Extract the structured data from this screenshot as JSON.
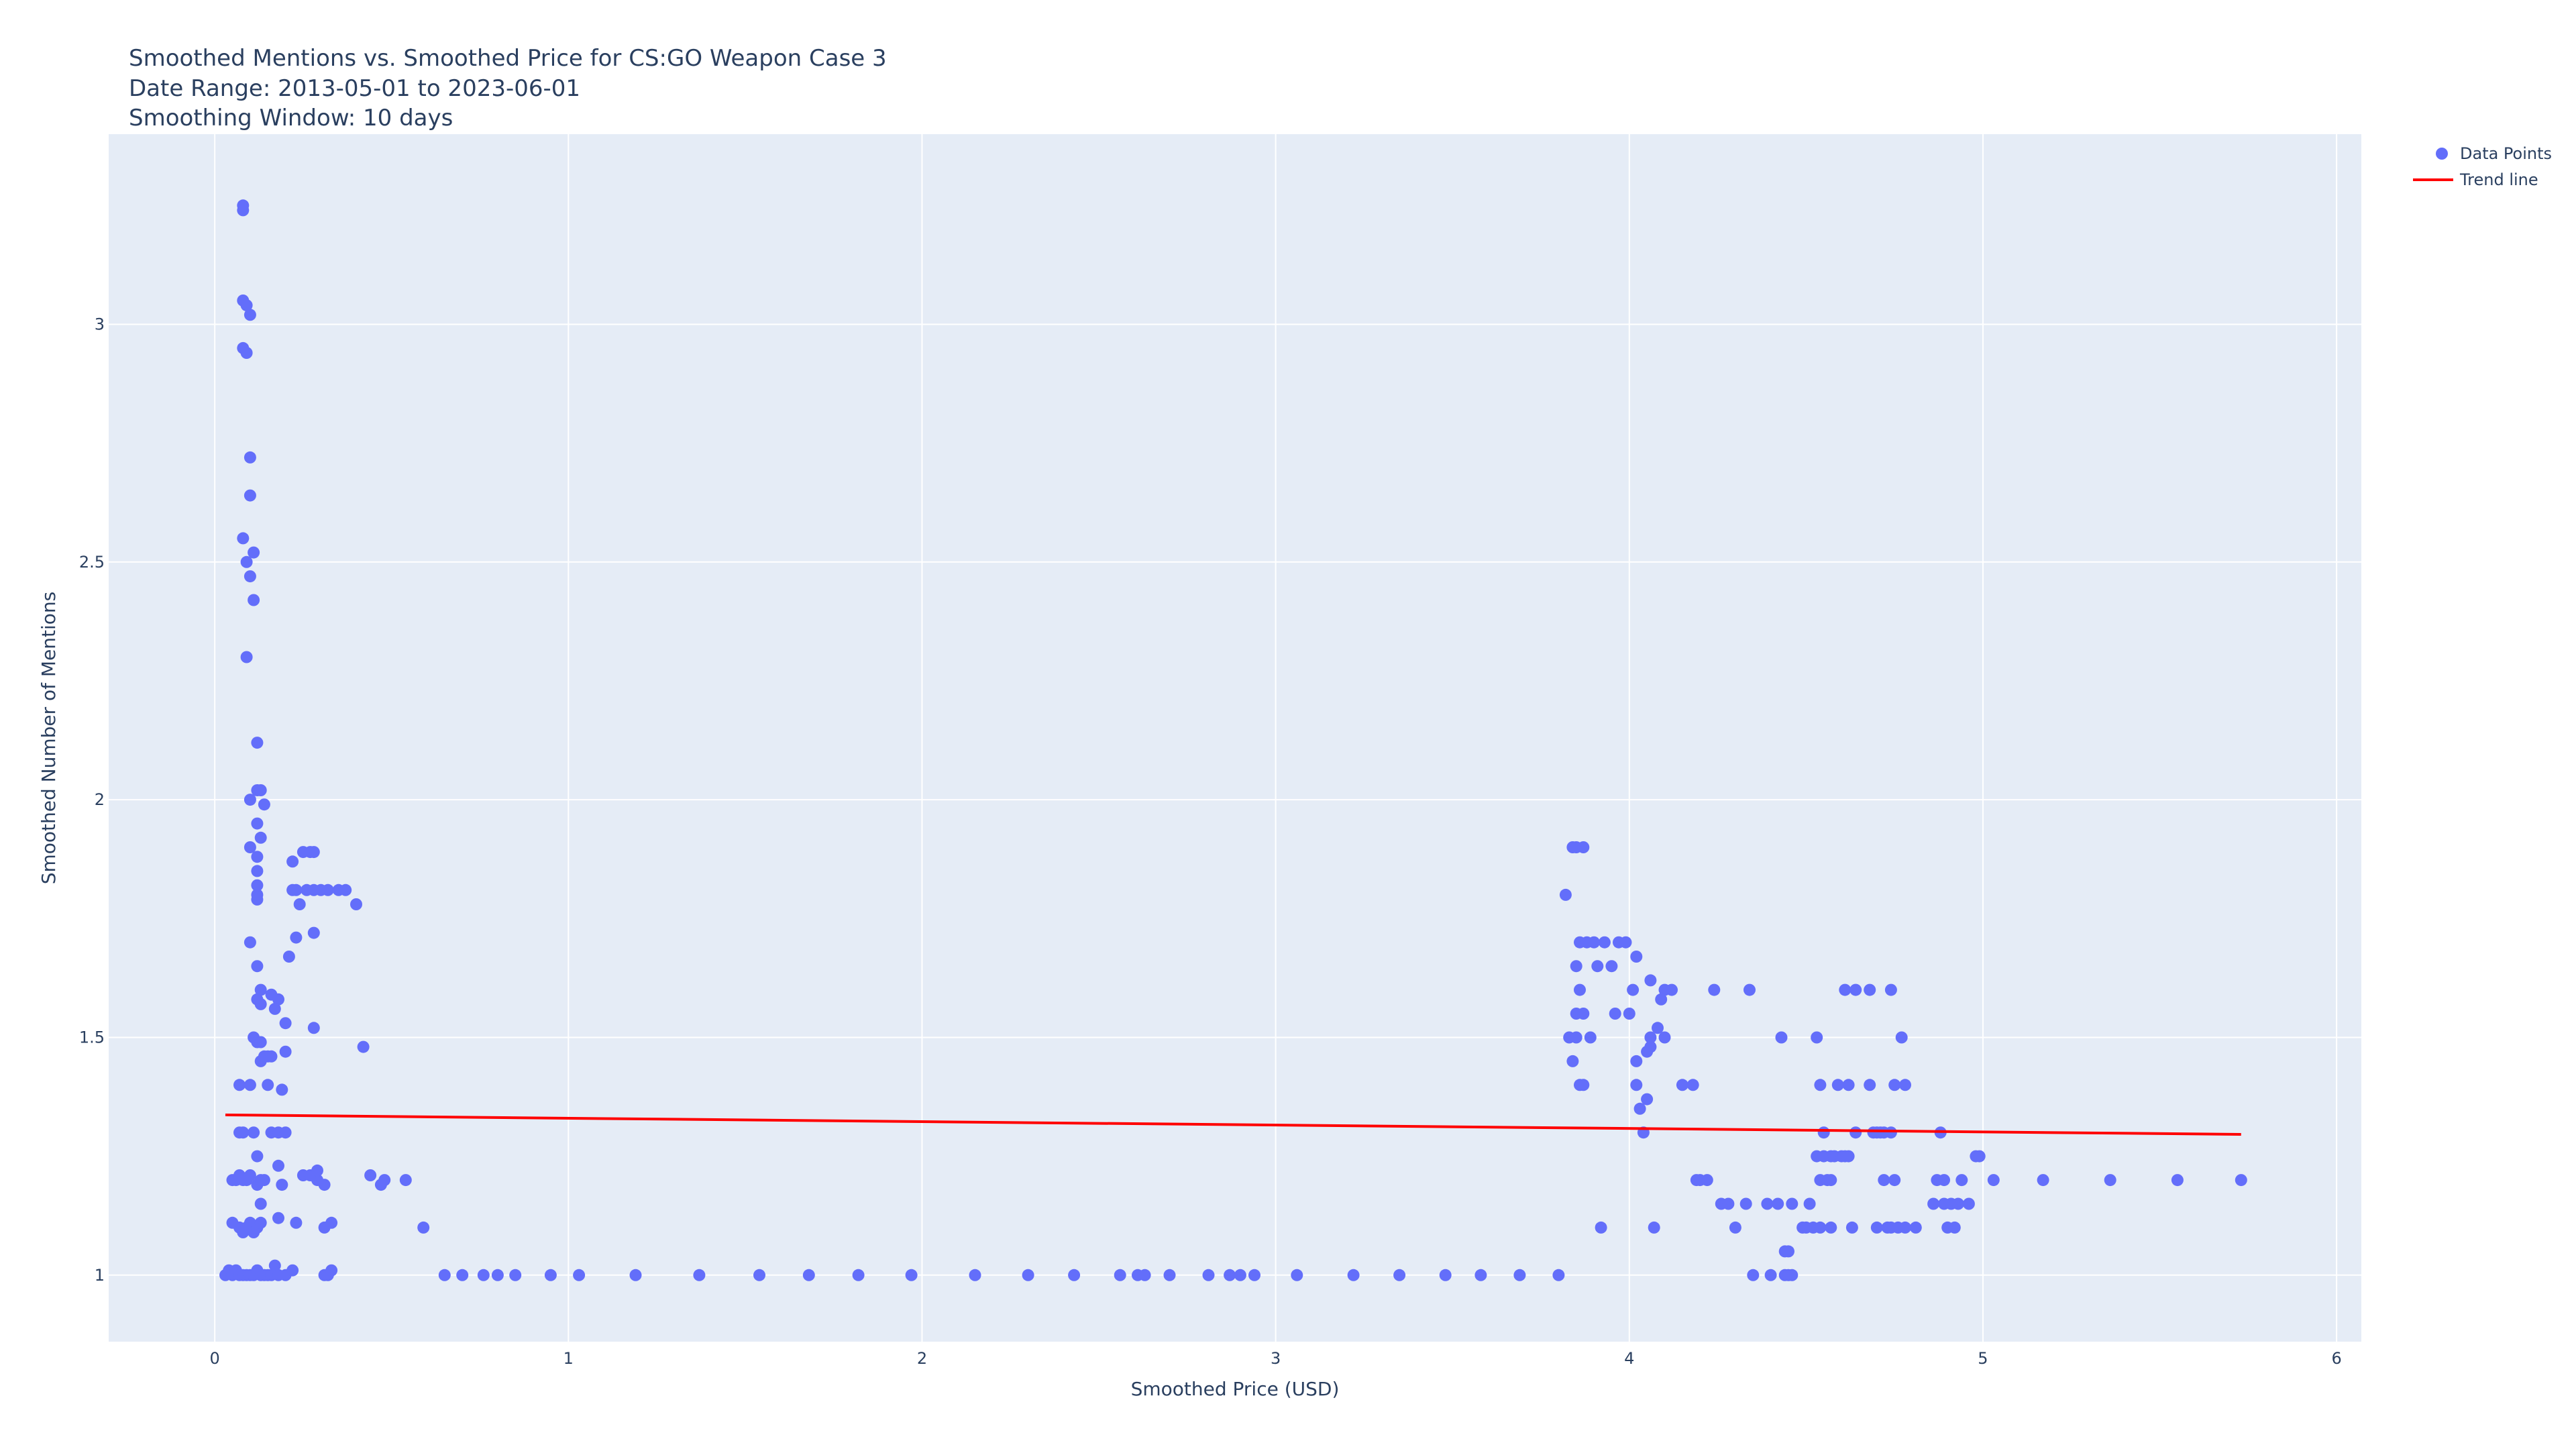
{
  "chart_data": {
    "type": "scatter",
    "title": [
      "Smoothed Mentions vs. Smoothed Price for CS:GO Weapon Case 3",
      "Date Range: 2013-05-01 to 2023-06-01",
      "Smoothing Window: 10 days"
    ],
    "xlabel": "Smoothed Price (USD)",
    "ylabel": "Smoothed Number of Mentions",
    "xlim": [
      -0.3,
      6.07
    ],
    "ylim": [
      0.86,
      3.4
    ],
    "x_ticks": [
      0,
      1,
      2,
      3,
      4,
      5,
      6
    ],
    "x_tick_labels": [
      "0",
      "1",
      "2",
      "3",
      "4",
      "5",
      "6"
    ],
    "y_ticks": [
      1,
      1.5,
      2,
      2.5,
      3
    ],
    "y_tick_labels": [
      "1",
      "1.5",
      "2",
      "2.5",
      "3"
    ],
    "grid": true,
    "legend_position": "top-right",
    "colors": {
      "points": "#636efa",
      "trend": "#ff0000",
      "plot_bg": "#e5ecf6",
      "grid": "#ffffff",
      "text": "#2a3f5f"
    },
    "series": [
      {
        "name": "Data Points",
        "kind": "markers",
        "points": [
          [
            0.03,
            1.0
          ],
          [
            0.04,
            1.01
          ],
          [
            0.05,
            1.0
          ],
          [
            0.06,
            1.01
          ],
          [
            0.07,
            1.0
          ],
          [
            0.08,
            1.0
          ],
          [
            0.09,
            1.0
          ],
          [
            0.1,
            1.0
          ],
          [
            0.11,
            1.0
          ],
          [
            0.12,
            1.01
          ],
          [
            0.13,
            1.0
          ],
          [
            0.14,
            1.0
          ],
          [
            0.15,
            1.0
          ],
          [
            0.16,
            1.0
          ],
          [
            0.17,
            1.02
          ],
          [
            0.18,
            1.0
          ],
          [
            0.2,
            1.0
          ],
          [
            0.22,
            1.01
          ],
          [
            0.31,
            1.0
          ],
          [
            0.32,
            1.0
          ],
          [
            0.33,
            1.01
          ],
          [
            0.05,
            1.11
          ],
          [
            0.07,
            1.1
          ],
          [
            0.08,
            1.09
          ],
          [
            0.09,
            1.1
          ],
          [
            0.1,
            1.11
          ],
          [
            0.11,
            1.09
          ],
          [
            0.12,
            1.1
          ],
          [
            0.13,
            1.11
          ],
          [
            0.18,
            1.12
          ],
          [
            0.23,
            1.11
          ],
          [
            0.31,
            1.1
          ],
          [
            0.33,
            1.11
          ],
          [
            0.05,
            1.2
          ],
          [
            0.06,
            1.2
          ],
          [
            0.07,
            1.21
          ],
          [
            0.08,
            1.2
          ],
          [
            0.09,
            1.2
          ],
          [
            0.1,
            1.21
          ],
          [
            0.12,
            1.19
          ],
          [
            0.13,
            1.2
          ],
          [
            0.14,
            1.2
          ],
          [
            0.19,
            1.19
          ],
          [
            0.25,
            1.21
          ],
          [
            0.27,
            1.21
          ],
          [
            0.29,
            1.2
          ],
          [
            0.31,
            1.19
          ],
          [
            0.13,
            1.15
          ],
          [
            0.12,
            1.25
          ],
          [
            0.18,
            1.23
          ],
          [
            0.29,
            1.22
          ],
          [
            0.07,
            1.3
          ],
          [
            0.08,
            1.3
          ],
          [
            0.11,
            1.3
          ],
          [
            0.16,
            1.3
          ],
          [
            0.18,
            1.3
          ],
          [
            0.2,
            1.3
          ],
          [
            0.07,
            1.4
          ],
          [
            0.1,
            1.4
          ],
          [
            0.15,
            1.4
          ],
          [
            0.19,
            1.39
          ],
          [
            0.13,
            1.45
          ],
          [
            0.14,
            1.46
          ],
          [
            0.15,
            1.46
          ],
          [
            0.16,
            1.46
          ],
          [
            0.2,
            1.47
          ],
          [
            0.42,
            1.48
          ],
          [
            0.11,
            1.5
          ],
          [
            0.12,
            1.49
          ],
          [
            0.13,
            1.49
          ],
          [
            0.2,
            1.53
          ],
          [
            0.28,
            1.52
          ],
          [
            0.12,
            1.58
          ],
          [
            0.13,
            1.6
          ],
          [
            0.16,
            1.59
          ],
          [
            0.18,
            1.58
          ],
          [
            0.17,
            1.56
          ],
          [
            0.13,
            1.57
          ],
          [
            0.12,
            1.65
          ],
          [
            0.21,
            1.67
          ],
          [
            0.1,
            1.7
          ],
          [
            0.23,
            1.71
          ],
          [
            0.28,
            1.72
          ],
          [
            0.24,
            1.78
          ],
          [
            0.4,
            1.78
          ],
          [
            0.12,
            1.79
          ],
          [
            0.12,
            1.8
          ],
          [
            0.12,
            1.82
          ],
          [
            0.12,
            1.85
          ],
          [
            0.22,
            1.81
          ],
          [
            0.23,
            1.81
          ],
          [
            0.26,
            1.81
          ],
          [
            0.28,
            1.81
          ],
          [
            0.3,
            1.81
          ],
          [
            0.32,
            1.81
          ],
          [
            0.35,
            1.81
          ],
          [
            0.37,
            1.81
          ],
          [
            0.22,
            1.87
          ],
          [
            0.25,
            1.89
          ],
          [
            0.27,
            1.89
          ],
          [
            0.28,
            1.89
          ],
          [
            0.1,
            1.9
          ],
          [
            0.12,
            1.88
          ],
          [
            0.13,
            1.92
          ],
          [
            0.12,
            1.95
          ],
          [
            0.1,
            2.0
          ],
          [
            0.14,
            1.99
          ],
          [
            0.12,
            2.02
          ],
          [
            0.13,
            2.02
          ],
          [
            0.12,
            2.12
          ],
          [
            0.09,
            2.3
          ],
          [
            0.11,
            2.42
          ],
          [
            0.1,
            2.47
          ],
          [
            0.09,
            2.5
          ],
          [
            0.11,
            2.52
          ],
          [
            0.08,
            2.55
          ],
          [
            0.1,
            2.64
          ],
          [
            0.1,
            2.72
          ],
          [
            0.08,
            2.95
          ],
          [
            0.09,
            2.94
          ],
          [
            0.08,
            3.05
          ],
          [
            0.09,
            3.04
          ],
          [
            0.1,
            3.02
          ],
          [
            0.08,
            3.24
          ],
          [
            0.08,
            3.25
          ],
          [
            0.44,
            1.21
          ],
          [
            0.47,
            1.19
          ],
          [
            0.48,
            1.2
          ],
          [
            0.54,
            1.2
          ],
          [
            0.59,
            1.1
          ],
          [
            0.65,
            1.0
          ],
          [
            0.7,
            1.0
          ],
          [
            0.76,
            1.0
          ],
          [
            0.8,
            1.0
          ],
          [
            0.85,
            1.0
          ],
          [
            0.95,
            1.0
          ],
          [
            1.03,
            1.0
          ],
          [
            1.19,
            1.0
          ],
          [
            1.37,
            1.0
          ],
          [
            1.54,
            1.0
          ],
          [
            1.68,
            1.0
          ],
          [
            1.82,
            1.0
          ],
          [
            1.97,
            1.0
          ],
          [
            2.15,
            1.0
          ],
          [
            2.3,
            1.0
          ],
          [
            2.43,
            1.0
          ],
          [
            2.56,
            1.0
          ],
          [
            2.61,
            1.0
          ],
          [
            2.63,
            1.0
          ],
          [
            2.7,
            1.0
          ],
          [
            2.81,
            1.0
          ],
          [
            2.87,
            1.0
          ],
          [
            2.9,
            1.0
          ],
          [
            2.94,
            1.0
          ],
          [
            3.06,
            1.0
          ],
          [
            3.22,
            1.0
          ],
          [
            3.35,
            1.0
          ],
          [
            3.48,
            1.0
          ],
          [
            3.58,
            1.0
          ],
          [
            3.69,
            1.0
          ],
          [
            3.8,
            1.0
          ],
          [
            3.82,
            1.8
          ],
          [
            3.83,
            1.5
          ],
          [
            3.84,
            1.45
          ],
          [
            3.85,
            1.5
          ],
          [
            3.85,
            1.55
          ],
          [
            3.85,
            1.65
          ],
          [
            3.84,
            1.9
          ],
          [
            3.85,
            1.9
          ],
          [
            3.87,
            1.9
          ],
          [
            3.86,
            1.7
          ],
          [
            3.86,
            1.6
          ],
          [
            3.86,
            1.4
          ],
          [
            3.87,
            1.4
          ],
          [
            3.87,
            1.55
          ],
          [
            3.88,
            1.7
          ],
          [
            3.89,
            1.5
          ],
          [
            3.9,
            1.7
          ],
          [
            3.91,
            1.65
          ],
          [
            3.92,
            1.1
          ],
          [
            3.93,
            1.7
          ],
          [
            3.95,
            1.65
          ],
          [
            3.96,
            1.55
          ],
          [
            3.97,
            1.7
          ],
          [
            3.99,
            1.7
          ],
          [
            4.0,
            1.55
          ],
          [
            4.01,
            1.6
          ],
          [
            4.02,
            1.67
          ],
          [
            4.02,
            1.45
          ],
          [
            4.02,
            1.4
          ],
          [
            4.03,
            1.35
          ],
          [
            4.04,
            1.3
          ],
          [
            4.05,
            1.37
          ],
          [
            4.05,
            1.47
          ],
          [
            4.06,
            1.48
          ],
          [
            4.06,
            1.5
          ],
          [
            4.06,
            1.62
          ],
          [
            4.07,
            1.1
          ],
          [
            4.08,
            1.52
          ],
          [
            4.09,
            1.58
          ],
          [
            4.1,
            1.6
          ],
          [
            4.1,
            1.5
          ],
          [
            4.12,
            1.6
          ],
          [
            4.15,
            1.4
          ],
          [
            4.18,
            1.4
          ],
          [
            4.19,
            1.2
          ],
          [
            4.2,
            1.2
          ],
          [
            4.22,
            1.2
          ],
          [
            4.24,
            1.6
          ],
          [
            4.26,
            1.15
          ],
          [
            4.28,
            1.15
          ],
          [
            4.3,
            1.1
          ],
          [
            4.33,
            1.15
          ],
          [
            4.34,
            1.6
          ],
          [
            4.35,
            1.0
          ],
          [
            4.39,
            1.15
          ],
          [
            4.4,
            1.0
          ],
          [
            4.42,
            1.15
          ],
          [
            4.43,
            1.5
          ],
          [
            4.44,
            1.0
          ],
          [
            4.44,
            1.05
          ],
          [
            4.45,
            1.05
          ],
          [
            4.45,
            1.0
          ],
          [
            4.46,
            1.0
          ],
          [
            4.46,
            1.15
          ],
          [
            4.49,
            1.1
          ],
          [
            4.5,
            1.1
          ],
          [
            4.51,
            1.15
          ],
          [
            4.52,
            1.1
          ],
          [
            4.53,
            1.25
          ],
          [
            4.53,
            1.5
          ],
          [
            4.54,
            1.1
          ],
          [
            4.54,
            1.2
          ],
          [
            4.54,
            1.4
          ],
          [
            4.55,
            1.3
          ],
          [
            4.55,
            1.25
          ],
          [
            4.56,
            1.2
          ],
          [
            4.57,
            1.2
          ],
          [
            4.57,
            1.25
          ],
          [
            4.57,
            1.1
          ],
          [
            4.58,
            1.25
          ],
          [
            4.59,
            1.4
          ],
          [
            4.6,
            1.25
          ],
          [
            4.61,
            1.25
          ],
          [
            4.61,
            1.6
          ],
          [
            4.62,
            1.4
          ],
          [
            4.62,
            1.25
          ],
          [
            4.63,
            1.1
          ],
          [
            4.64,
            1.6
          ],
          [
            4.64,
            1.3
          ],
          [
            4.68,
            1.6
          ],
          [
            4.68,
            1.4
          ],
          [
            4.69,
            1.3
          ],
          [
            4.7,
            1.3
          ],
          [
            4.7,
            1.1
          ],
          [
            4.71,
            1.3
          ],
          [
            4.72,
            1.2
          ],
          [
            4.72,
            1.3
          ],
          [
            4.73,
            1.1
          ],
          [
            4.74,
            1.3
          ],
          [
            4.74,
            1.6
          ],
          [
            4.74,
            1.1
          ],
          [
            4.75,
            1.2
          ],
          [
            4.75,
            1.4
          ],
          [
            4.76,
            1.1
          ],
          [
            4.77,
            1.5
          ],
          [
            4.78,
            1.4
          ],
          [
            4.78,
            1.1
          ],
          [
            4.81,
            1.1
          ],
          [
            4.86,
            1.15
          ],
          [
            4.87,
            1.2
          ],
          [
            4.88,
            1.3
          ],
          [
            4.89,
            1.2
          ],
          [
            4.89,
            1.15
          ],
          [
            4.9,
            1.1
          ],
          [
            4.91,
            1.15
          ],
          [
            4.92,
            1.1
          ],
          [
            4.93,
            1.15
          ],
          [
            4.94,
            1.2
          ],
          [
            4.96,
            1.15
          ],
          [
            4.98,
            1.25
          ],
          [
            4.99,
            1.25
          ],
          [
            5.03,
            1.2
          ],
          [
            5.17,
            1.2
          ],
          [
            5.36,
            1.2
          ],
          [
            5.55,
            1.2
          ],
          [
            5.73,
            1.2
          ]
        ]
      },
      {
        "name": "Trend line",
        "kind": "line",
        "points": [
          [
            0.03,
            1.337
          ],
          [
            5.73,
            1.296
          ]
        ]
      }
    ]
  }
}
